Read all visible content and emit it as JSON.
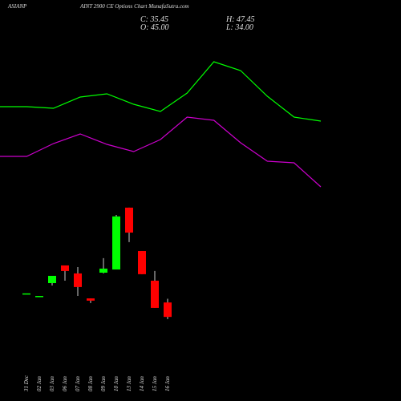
{
  "chart_data": [
    {
      "type": "candlestick",
      "title": "ASIANP",
      "subtitle": "AINT 2900 CE Options Chart MunafaSutra.com",
      "annotations": [
        "C: 35.45",
        "H: 47.45",
        "O: 45.00",
        "L: 34.00"
      ],
      "categories": [
        "31 Dec",
        "02 Jan",
        "03 Jan",
        "06 Jan",
        "07 Jan",
        "08 Jan",
        "09 Jan",
        "10 Jan",
        "13 Jan",
        "14 Jan",
        "15 Jan",
        "16 Jan"
      ],
      "open": [
        51,
        49.3,
        57.8,
        69.5,
        64.2,
        47.7,
        64.7,
        66.8,
        107.7,
        79,
        59.4,
        45
      ],
      "high": [
        51,
        49.3,
        62.6,
        69.5,
        68.4,
        47.7,
        74.3,
        102.9,
        107.7,
        79,
        65.8,
        47.45
      ],
      "low": [
        51,
        49.3,
        56.2,
        59.4,
        49.3,
        44.6,
        64.2,
        66.8,
        84.9,
        63.7,
        41.4,
        34
      ],
      "close": [
        51,
        49.3,
        62.6,
        65.8,
        55.2,
        46.2,
        67.4,
        101.9,
        91.2,
        63.7,
        41.4,
        35.45
      ],
      "up_color": "#00ff00",
      "down_color": "#ff0000",
      "ylim": [
        0,
        245
      ]
    },
    {
      "type": "line",
      "x": [
        0,
        1,
        2,
        3,
        4,
        5,
        6,
        7,
        8,
        9,
        10,
        11,
        12
      ],
      "xlim": [
        0,
        12
      ],
      "ylim": [
        0,
        100
      ],
      "series": [
        {
          "color": "#00ff00",
          "values": [
            58.5,
            58.5,
            57.5,
            64.5,
            66.5,
            60,
            55.5,
            67,
            86.5,
            81,
            65,
            52,
            49.5
          ]
        },
        {
          "color": "#cc00cc",
          "values": [
            27.5,
            27.5,
            35.5,
            41.5,
            35,
            30.5,
            38,
            52,
            50,
            36,
            24.5,
            23.5,
            8.5
          ]
        }
      ]
    }
  ]
}
